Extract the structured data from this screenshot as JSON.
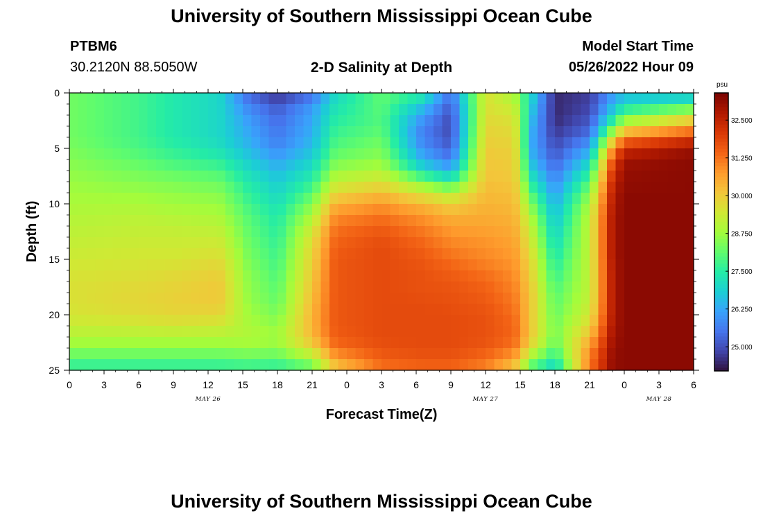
{
  "page": {
    "title": "University of Southern Mississippi Ocean Cube",
    "station_id": "PTBM6",
    "station_coords": "30.2120N  88.5050W",
    "subtitle": "2-D Salinity at Depth",
    "model_start_label": "Model Start Time",
    "model_start_value": "05/26/2022 Hour 09",
    "footer_title": "University of Southern Mississippi Ocean Cube"
  },
  "chart_data": {
    "type": "heatmap",
    "title": "2-D Salinity at Depth",
    "xlabel": "Forecast Time(Z)",
    "ylabel": "Depth (ft)",
    "x_unit": "hours since 2022-05-26 00Z",
    "x_range": [
      0,
      54
    ],
    "x_ticks": [
      0,
      3,
      6,
      9,
      12,
      15,
      18,
      21,
      24,
      27,
      30,
      33,
      36,
      39,
      42,
      45,
      48,
      51,
      54
    ],
    "x_tick_labels": [
      "0",
      "3",
      "6",
      "9",
      "12",
      "15",
      "18",
      "21",
      "0",
      "3",
      "6",
      "9",
      "12",
      "15",
      "18",
      "21",
      "0",
      "3",
      "6"
    ],
    "date_labels": [
      {
        "text": "MAY 26",
        "x": 12
      },
      {
        "text": "MAY 27",
        "x": 36
      },
      {
        "text": "MAY 28",
        "x": 51
      }
    ],
    "y_range": [
      0,
      25
    ],
    "y_inverted": true,
    "y_ticks": [
      0,
      5,
      10,
      15,
      20,
      25
    ],
    "colorbar": {
      "unit": "psu",
      "min": 24.2,
      "max": 33.4,
      "ticks": [
        32.5,
        31.25,
        30.0,
        28.75,
        27.5,
        26.25,
        25.0
      ],
      "tick_labels": [
        "32.500",
        "31.250",
        "30.000",
        "28.750",
        "27.500",
        "26.250",
        "25.000"
      ],
      "colors": [
        "#30123b",
        "#4145ab",
        "#4675ed",
        "#39a2fc",
        "#1bcfd4",
        "#24eca6",
        "#61fc6c",
        "#a4fc3b",
        "#d1e834",
        "#f3c63a",
        "#fe9b2d",
        "#f36315",
        "#d93806",
        "#b11901",
        "#7a0403"
      ]
    },
    "depth_levels_ft": [
      0,
      1,
      2,
      3,
      4,
      5,
      6,
      7,
      8,
      9,
      10,
      11,
      12,
      13,
      14,
      15,
      16,
      17,
      18,
      19,
      20,
      21,
      22,
      23,
      24,
      25
    ],
    "time_levels_hr": [
      0,
      6,
      9,
      13,
      15.5,
      18,
      21,
      23,
      27,
      30.5,
      33,
      36,
      38.5,
      40,
      42,
      45,
      47,
      48,
      54
    ],
    "values_psu": [
      [
        28.3,
        27.8,
        27.4,
        27.0,
        25.3,
        24.5,
        25.3,
        27.0,
        28.1,
        27.6,
        25.5,
        29.6,
        28.8,
        27.0,
        24.5,
        24.8,
        26.0,
        26.3,
        26.5
      ],
      [
        28.3,
        27.8,
        27.4,
        27.0,
        25.7,
        25.1,
        26.0,
        27.2,
        28.1,
        26.8,
        25.2,
        29.6,
        29.2,
        26.8,
        24.5,
        24.8,
        26.4,
        27.2,
        27.6
      ],
      [
        28.3,
        27.8,
        27.4,
        27.0,
        26.0,
        25.3,
        26.2,
        27.4,
        28.0,
        26.2,
        25.0,
        29.7,
        29.5,
        26.6,
        24.5,
        25.0,
        27.0,
        28.0,
        29.4
      ],
      [
        28.3,
        27.8,
        27.4,
        27.0,
        26.2,
        25.5,
        26.3,
        27.6,
        28.0,
        25.8,
        24.9,
        29.8,
        29.7,
        26.4,
        24.6,
        25.2,
        28.0,
        29.5,
        30.6
      ],
      [
        28.3,
        27.8,
        27.4,
        27.0,
        26.3,
        25.6,
        26.4,
        27.8,
        28.2,
        25.7,
        25.0,
        29.9,
        29.8,
        26.3,
        24.8,
        25.6,
        29.4,
        31.0,
        32.0
      ],
      [
        28.4,
        27.9,
        27.6,
        27.2,
        26.5,
        25.8,
        26.6,
        28.0,
        28.4,
        26.0,
        25.2,
        30.0,
        29.9,
        26.3,
        25.0,
        26.2,
        30.8,
        32.3,
        33.0
      ],
      [
        28.5,
        28.1,
        27.8,
        27.5,
        26.8,
        26.2,
        26.9,
        28.3,
        28.6,
        26.4,
        25.6,
        30.1,
        30.0,
        26.5,
        25.2,
        26.8,
        31.6,
        32.9,
        33.2
      ],
      [
        28.6,
        28.3,
        28.1,
        27.9,
        27.1,
        26.5,
        27.2,
        28.7,
        29.0,
        27.2,
        26.4,
        30.1,
        30.0,
        26.9,
        25.5,
        27.4,
        32.1,
        33.1,
        33.2
      ],
      [
        28.7,
        28.5,
        28.4,
        28.2,
        27.4,
        26.8,
        27.6,
        29.2,
        29.6,
        28.4,
        27.6,
        30.2,
        30.1,
        27.4,
        25.8,
        28.0,
        32.4,
        33.1,
        33.2
      ],
      [
        28.8,
        28.7,
        28.6,
        28.5,
        27.6,
        27.0,
        28.0,
        29.8,
        30.2,
        29.5,
        29.0,
        30.3,
        30.2,
        27.9,
        26.1,
        28.5,
        32.6,
        33.2,
        33.2
      ],
      [
        28.9,
        28.9,
        28.8,
        28.7,
        27.8,
        27.2,
        28.5,
        30.4,
        30.8,
        30.3,
        29.9,
        30.4,
        30.3,
        28.4,
        26.4,
        28.9,
        32.7,
        33.2,
        33.2
      ],
      [
        29.0,
        29.1,
        29.0,
        28.9,
        28.0,
        27.4,
        28.9,
        30.9,
        31.2,
        30.8,
        30.4,
        30.5,
        30.4,
        28.8,
        26.6,
        29.1,
        32.8,
        33.2,
        33.2
      ],
      [
        29.1,
        29.2,
        29.2,
        29.1,
        28.1,
        27.5,
        29.3,
        31.2,
        31.5,
        31.1,
        30.7,
        30.6,
        30.5,
        29.1,
        26.8,
        29.2,
        32.8,
        33.2,
        33.2
      ],
      [
        29.2,
        29.3,
        29.3,
        29.3,
        28.2,
        27.6,
        29.6,
        31.4,
        31.7,
        31.3,
        30.9,
        30.8,
        30.6,
        29.3,
        27.0,
        29.2,
        32.8,
        33.2,
        33.2
      ],
      [
        29.3,
        29.4,
        29.4,
        29.5,
        28.3,
        27.7,
        29.8,
        31.5,
        31.8,
        31.5,
        31.1,
        30.9,
        30.7,
        29.5,
        27.2,
        29.2,
        32.8,
        33.2,
        33.2
      ],
      [
        29.4,
        29.5,
        29.5,
        29.7,
        28.4,
        27.8,
        29.9,
        31.6,
        31.8,
        31.6,
        31.3,
        31.0,
        30.8,
        29.7,
        27.4,
        29.2,
        32.8,
        33.2,
        33.2
      ],
      [
        29.5,
        29.6,
        29.7,
        29.9,
        28.5,
        27.9,
        30.0,
        31.6,
        31.8,
        31.7,
        31.5,
        31.2,
        30.9,
        29.8,
        27.6,
        29.2,
        32.7,
        33.2,
        33.2
      ],
      [
        29.6,
        29.7,
        29.8,
        30.0,
        28.6,
        28.0,
        30.1,
        31.6,
        31.8,
        31.7,
        31.6,
        31.4,
        31.0,
        29.9,
        27.8,
        29.2,
        32.7,
        33.2,
        33.2
      ],
      [
        29.6,
        29.8,
        29.9,
        30.1,
        28.6,
        28.1,
        30.2,
        31.6,
        31.8,
        31.7,
        31.7,
        31.5,
        31.1,
        30.0,
        28.0,
        29.2,
        32.7,
        33.2,
        33.2
      ],
      [
        29.6,
        29.8,
        29.9,
        30.0,
        28.7,
        28.2,
        30.3,
        31.6,
        31.8,
        31.8,
        31.7,
        31.6,
        31.2,
        30.0,
        28.1,
        29.3,
        32.7,
        33.2,
        33.2
      ],
      [
        29.5,
        29.7,
        29.8,
        29.8,
        28.8,
        28.4,
        30.4,
        31.6,
        31.8,
        31.8,
        31.8,
        31.7,
        31.3,
        30.0,
        28.2,
        29.5,
        32.7,
        33.2,
        33.2
      ],
      [
        29.3,
        29.4,
        29.5,
        29.4,
        28.9,
        28.6,
        30.4,
        31.6,
        31.8,
        31.8,
        31.8,
        31.7,
        31.4,
        30.0,
        28.3,
        29.8,
        32.8,
        33.2,
        33.2
      ],
      [
        29.0,
        29.0,
        29.0,
        29.0,
        29.0,
        28.8,
        30.3,
        31.5,
        31.8,
        31.8,
        31.8,
        31.7,
        31.4,
        30.0,
        28.3,
        30.3,
        32.9,
        33.2,
        33.2
      ],
      [
        28.6,
        28.6,
        28.6,
        28.6,
        28.7,
        28.6,
        29.8,
        31.3,
        31.7,
        31.8,
        31.8,
        31.6,
        31.2,
        29.6,
        28.0,
        30.8,
        33.0,
        33.2,
        33.2
      ],
      [
        28.0,
        28.0,
        28.0,
        28.0,
        28.1,
        28.0,
        28.8,
        30.6,
        31.5,
        31.6,
        31.6,
        31.3,
        30.6,
        28.6,
        27.4,
        31.1,
        33.1,
        33.2,
        33.2
      ],
      [
        27.5,
        27.5,
        27.5,
        27.5,
        27.6,
        27.5,
        28.0,
        30.0,
        31.2,
        31.4,
        31.4,
        31.0,
        30.0,
        27.8,
        26.8,
        31.2,
        33.1,
        33.2,
        33.2
      ]
    ]
  }
}
